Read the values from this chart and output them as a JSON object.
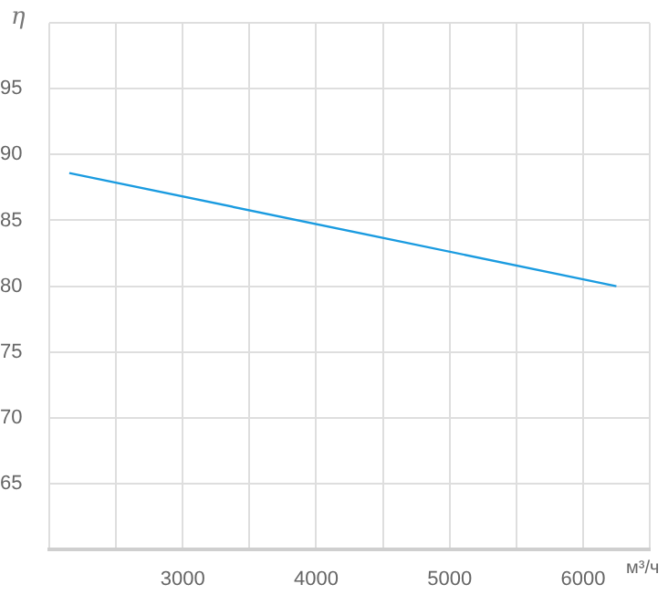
{
  "chart_data": {
    "type": "line",
    "xlabel": "м³/ч",
    "ylabel": "η",
    "series": [
      {
        "color": "#1a9be0",
        "x": [
          2150,
          6250
        ],
        "values": [
          88.6,
          80
        ]
      }
    ],
    "xlim": [
      2000,
      6500
    ],
    "xticks": [
      {
        "value": 2000,
        "label": null
      },
      {
        "value": 2500,
        "label": null
      },
      3000,
      {
        "value": 3500,
        "label": null
      },
      4000,
      {
        "value": 4500,
        "label": null
      },
      5000,
      {
        "value": 5500,
        "label": null
      },
      6000,
      {
        "value": 6500,
        "label": null
      }
    ],
    "ylim": [
      60,
      100
    ],
    "yticks": [
      {
        "value": 60,
        "label": null
      },
      65,
      70,
      75,
      80,
      85,
      90,
      95,
      {
        "value": 100,
        "label": null
      }
    ],
    "grid": true,
    "legend": false,
    "marker": "none",
    "line_style": "solid"
  }
}
